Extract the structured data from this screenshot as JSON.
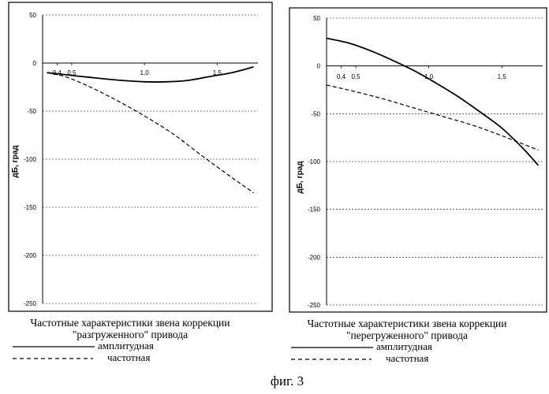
{
  "figure_label": "фиг. 3",
  "chart_data": [
    {
      "type": "line",
      "title": "Частотные характеристики звена коррекции",
      "subtitle": "\"разгруженного\" привода",
      "ylabel": "дБ, град",
      "xlabel": "",
      "ylim": [
        -250,
        50
      ],
      "xlim": [
        0.3,
        1.78
      ],
      "y_ticks": [
        50,
        0,
        -50,
        -100,
        -150,
        -200,
        -250
      ],
      "x_ticks": [
        0.4,
        0.5,
        1.0,
        1.5
      ],
      "x_tick_labels": [
        "0,4",
        "0,5",
        "1,0",
        "1,5"
      ],
      "y_tick_labels": [
        "50",
        "0",
        "-50",
        "-100",
        "-150",
        "-200",
        "-250"
      ],
      "grid": "horizontal dashed",
      "legend_position": "bottom",
      "series": [
        {
          "name": "амплитудная",
          "style": "solid",
          "x": [
            0.33,
            0.45,
            0.6,
            0.8,
            1.0,
            1.15,
            1.3,
            1.45,
            1.6,
            1.75
          ],
          "y": [
            -10,
            -12,
            -14.5,
            -17.5,
            -19.5,
            -19.5,
            -18,
            -14,
            -10,
            -4
          ]
        },
        {
          "name": "частотная",
          "style": "dashed",
          "x": [
            0.33,
            0.45,
            0.6,
            0.8,
            1.0,
            1.2,
            1.4,
            1.6,
            1.75
          ],
          "y": [
            -10,
            -14,
            -23,
            -38,
            -55,
            -74,
            -97,
            -119,
            -135
          ]
        }
      ]
    },
    {
      "type": "line",
      "title": "Частотные характеристики звена коррекции",
      "subtitle": "\"перегруженного\" привода",
      "ylabel": "дБ, град",
      "xlabel": "",
      "ylim": [
        -250,
        50
      ],
      "xlim": [
        0.3,
        1.78
      ],
      "y_ticks": [
        50,
        0,
        -50,
        -100,
        -150,
        -200,
        -250
      ],
      "x_ticks": [
        0.4,
        0.5,
        1.0,
        1.5
      ],
      "x_tick_labels": [
        "0,4",
        "0,5",
        "1,0",
        "1,5"
      ],
      "y_tick_labels": [
        "50",
        "0",
        "-50",
        "-100",
        "-150",
        "-200",
        "-250"
      ],
      "grid": "horizontal dashed",
      "legend_position": "bottom",
      "series": [
        {
          "name": "амплитудная",
          "style": "solid",
          "x": [
            0.3,
            0.45,
            0.6,
            0.75,
            0.9,
            1.05,
            1.2,
            1.35,
            1.5,
            1.65,
            1.75
          ],
          "y": [
            29,
            24,
            16,
            6,
            -5,
            -18,
            -32,
            -48,
            -65,
            -87,
            -104
          ]
        },
        {
          "name": "частотная",
          "style": "dashed",
          "x": [
            0.3,
            0.5,
            0.7,
            0.9,
            1.1,
            1.3,
            1.5,
            1.75
          ],
          "y": [
            -20,
            -27,
            -35,
            -44,
            -53,
            -62,
            -73,
            -88
          ]
        }
      ]
    }
  ]
}
